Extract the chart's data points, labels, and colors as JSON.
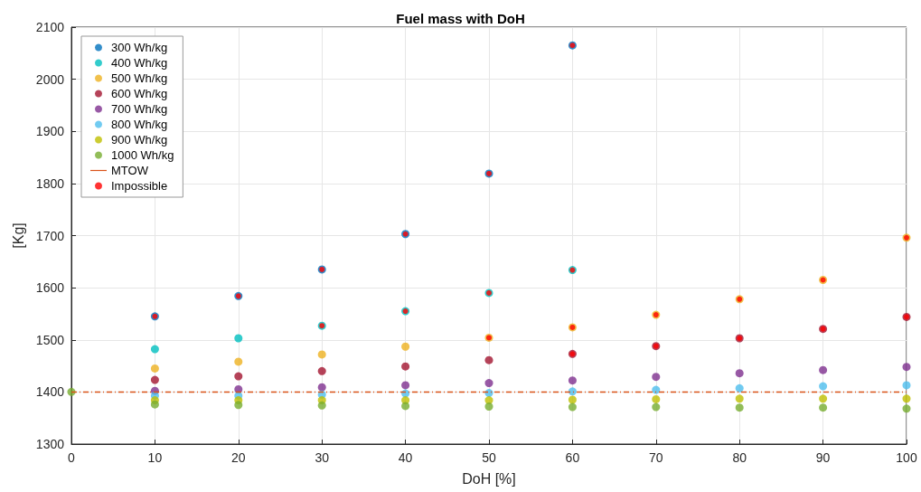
{
  "chart_data": {
    "type": "scatter",
    "title": "Fuel mass with DoH",
    "xlabel": "DoH [%]",
    "ylabel": "[Kg]",
    "xlim": [
      0,
      100
    ],
    "xticks": [
      0,
      10,
      20,
      30,
      40,
      50,
      60,
      70,
      80,
      90,
      100
    ],
    "ylim": [
      1300,
      2100
    ],
    "yticks": [
      1300,
      1400,
      1500,
      1600,
      1700,
      1800,
      1900,
      2000,
      2100
    ],
    "grid": true,
    "legend": "top left",
    "marker": "circle",
    "series": [
      {
        "name": "300 Wh/kg",
        "color": "#0072bd",
        "x": [
          10,
          20,
          30,
          40,
          50,
          60
        ],
        "values": [
          1545,
          1584,
          1635,
          1703,
          1819,
          2065
        ]
      },
      {
        "name": "400 Wh/kg",
        "color": "#00bfbf",
        "x": [
          10,
          20,
          30,
          40,
          50,
          60
        ],
        "values": [
          1482,
          1503,
          1527,
          1555,
          1590,
          1634
        ]
      },
      {
        "name": "500 Wh/kg",
        "color": "#edb120",
        "x": [
          10,
          20,
          30,
          40,
          50,
          60,
          70,
          80,
          90,
          100
        ],
        "values": [
          1445,
          1458,
          1472,
          1487,
          1504,
          1524,
          1548,
          1578,
          1615,
          1696
        ]
      },
      {
        "name": "600 Wh/kg",
        "color": "#a2142f",
        "x": [
          10,
          20,
          30,
          40,
          50,
          60,
          70,
          80,
          90,
          100
        ],
        "values": [
          1423,
          1430,
          1440,
          1449,
          1461,
          1473,
          1488,
          1503,
          1521,
          1544
        ]
      },
      {
        "name": "700 Wh/kg",
        "color": "#7e2f8e",
        "x": [
          10,
          20,
          30,
          40,
          50,
          60,
          70,
          80,
          90,
          100
        ],
        "values": [
          1402,
          1405,
          1409,
          1413,
          1417,
          1422,
          1429,
          1436,
          1442,
          1448
        ]
      },
      {
        "name": "800 Wh/kg",
        "color": "#4dbeee",
        "x": [
          10,
          20,
          30,
          40,
          50,
          60,
          70,
          80,
          90,
          100
        ],
        "values": [
          1393,
          1393,
          1395,
          1397,
          1398,
          1401,
          1404,
          1407,
          1411,
          1413
        ]
      },
      {
        "name": "900 Wh/kg",
        "color": "#bfbf00",
        "x": [
          10,
          20,
          30,
          40,
          50,
          60,
          70,
          80,
          90,
          100
        ],
        "values": [
          1384,
          1384,
          1384,
          1384,
          1384,
          1385,
          1386,
          1387,
          1387,
          1387
        ]
      },
      {
        "name": "1000 Wh/kg",
        "color": "#77ac30",
        "x": [
          0,
          10,
          20,
          30,
          40,
          50,
          60,
          70,
          80,
          90,
          100
        ],
        "values": [
          1400,
          1376,
          1375,
          1374,
          1373,
          1372,
          1371,
          1371,
          1370,
          1370,
          1368
        ]
      },
      {
        "name": "MTOW",
        "type": "line",
        "color": "#d95319",
        "line_style": "dashed",
        "marker": "none",
        "x": [
          0,
          100
        ],
        "values": [
          1400,
          1400
        ]
      },
      {
        "name": "Impossible",
        "color": "#ff0000",
        "x": [
          10,
          20,
          30,
          40,
          50,
          60,
          30,
          40,
          50,
          60,
          50,
          60,
          70,
          80,
          90,
          100,
          60,
          70,
          80,
          90,
          100
        ],
        "values": [
          1545,
          1584,
          1635,
          1703,
          1819,
          2065,
          1527,
          1555,
          1590,
          1634,
          1504,
          1524,
          1548,
          1578,
          1615,
          1696,
          1473,
          1488,
          1503,
          1521,
          1544
        ]
      }
    ]
  }
}
